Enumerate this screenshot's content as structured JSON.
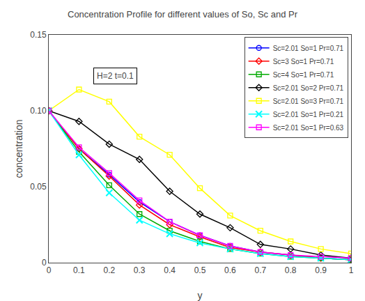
{
  "chart_data": {
    "type": "line",
    "title": "Concentration Profile for different values of So, Sc and Pr",
    "xlabel": "y",
    "ylabel": "concentration",
    "annotation": "H=2 t=0.1",
    "x": [
      0.0,
      0.1,
      0.2,
      0.3,
      0.4,
      0.5,
      0.6,
      0.7,
      0.8,
      0.9,
      1.0
    ],
    "xlim": [
      0,
      1
    ],
    "ylim": [
      0,
      0.15
    ],
    "xticks": [
      0,
      0.1,
      0.2,
      0.3,
      0.4,
      0.5,
      0.6,
      0.7,
      0.8,
      0.9,
      1
    ],
    "yticks": [
      0,
      0.05,
      {
        "value": 0.1,
        "label": "0.10"
      },
      0.15
    ],
    "grid": false,
    "legend": "upper right",
    "series": [
      {
        "name": "Sc=2.01 So=1 Pr=0.71",
        "color": "#0000ff",
        "marker": "circle",
        "values": [
          0.1,
          0.075,
          0.058,
          0.04,
          0.027,
          0.018,
          0.011,
          0.007,
          0.005,
          0.003,
          0.002
        ]
      },
      {
        "name": "Sc=3 So=1 Pr=0.71",
        "color": "#ff0000",
        "marker": "diamond",
        "values": [
          0.1,
          0.075,
          0.057,
          0.038,
          0.025,
          0.017,
          0.01,
          0.007,
          0.005,
          0.003,
          0.002
        ]
      },
      {
        "name": "Sc=4 So=1 Pr=0.71",
        "color": "#00aa00",
        "marker": "square",
        "values": [
          0.1,
          0.073,
          0.051,
          0.032,
          0.021,
          0.014,
          0.009,
          0.006,
          0.004,
          0.003,
          0.002
        ]
      },
      {
        "name": "Sc=2.01 So=2 Pr=0.71",
        "color": "#000000",
        "marker": "diamond",
        "values": [
          0.1,
          0.093,
          0.078,
          0.068,
          0.047,
          0.032,
          0.023,
          0.012,
          0.009,
          0.005,
          0.003
        ]
      },
      {
        "name": "Sc=2.01 So=3 Pr=0.71",
        "color": "#ffff00",
        "marker": "square",
        "values": [
          0.1,
          0.114,
          0.106,
          0.083,
          0.071,
          0.049,
          0.031,
          0.021,
          0.014,
          0.009,
          0.006
        ]
      },
      {
        "name": "Sc=2.01 So=1 Pr=0.21",
        "color": "#00ffff",
        "marker": "x",
        "values": [
          0.1,
          0.071,
          0.046,
          0.028,
          0.019,
          0.013,
          0.009,
          0.006,
          0.004,
          0.003,
          0.002
        ]
      },
      {
        "name": "Sc=2.01 So=1 Pr=0.63",
        "color": "#ff00ff",
        "marker": "square",
        "values": [
          0.1,
          0.076,
          0.059,
          0.041,
          0.027,
          0.018,
          0.011,
          0.007,
          0.005,
          0.004,
          0.003
        ]
      }
    ]
  }
}
